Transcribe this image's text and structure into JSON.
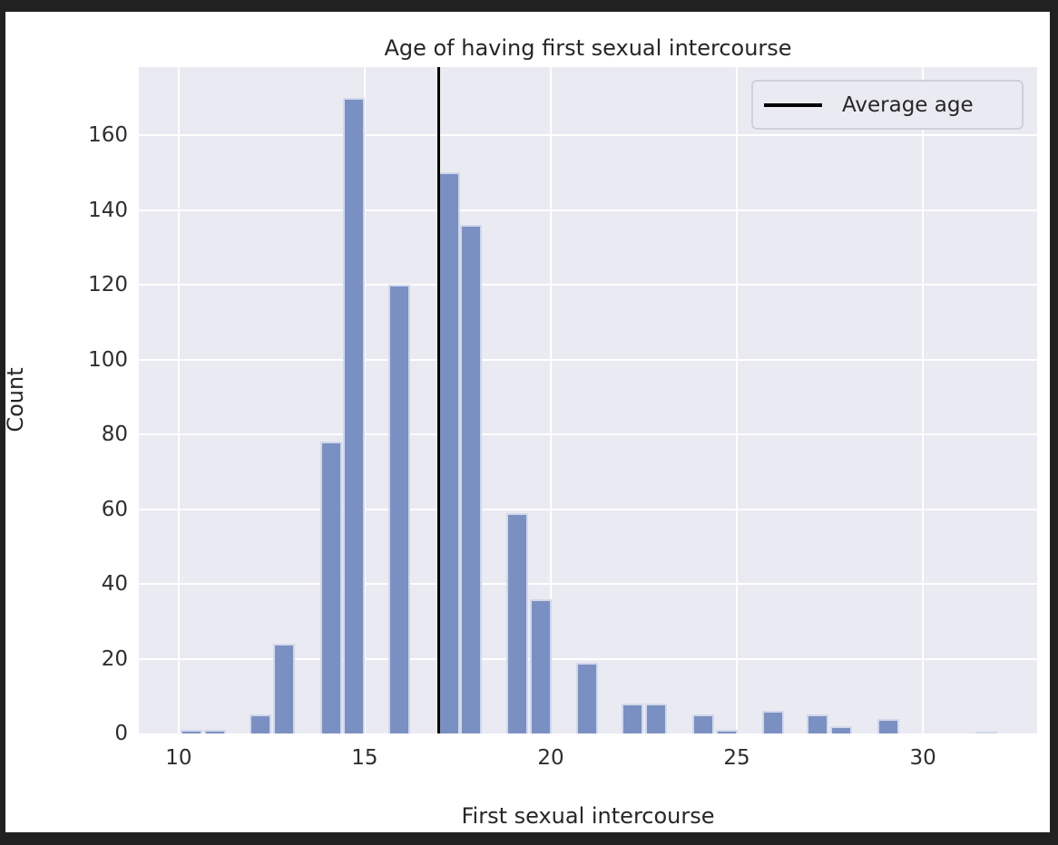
{
  "window": {
    "outer_background": "#212121",
    "figure_background": "#ffffff"
  },
  "chart_data": {
    "type": "bar",
    "subtype": "histogram",
    "title": "Age of having first sexual intercourse",
    "xlabel": "First sexual intercourse",
    "ylabel": "Count",
    "xlim": [
      8.93,
      33.07
    ],
    "ylim": [
      0,
      178.2
    ],
    "x_ticks": [
      10,
      15,
      20,
      25,
      30
    ],
    "y_ticks": [
      0,
      20,
      40,
      60,
      80,
      100,
      120,
      140,
      160
    ],
    "grid": true,
    "legend_position": "upper right",
    "plot_background": "#eaeaf2",
    "grid_color": "#ffffff",
    "bar_color": "#7b90c2",
    "bar_edge_color": "rgba(255,255,255,0.65)",
    "bar_width_units": 0.585,
    "bars": [
      {
        "x": 10.34,
        "count": 1
      },
      {
        "x": 10.97,
        "count": 1
      },
      {
        "x": 12.2,
        "count": 5
      },
      {
        "x": 12.82,
        "count": 24
      },
      {
        "x": 14.09,
        "count": 78
      },
      {
        "x": 14.72,
        "count": 170
      },
      {
        "x": 15.93,
        "count": 120
      },
      {
        "x": 17.26,
        "count": 150
      },
      {
        "x": 17.85,
        "count": 136
      },
      {
        "x": 19.1,
        "count": 59
      },
      {
        "x": 19.74,
        "count": 36
      },
      {
        "x": 20.98,
        "count": 19
      },
      {
        "x": 22.2,
        "count": 8
      },
      {
        "x": 22.84,
        "count": 8
      },
      {
        "x": 24.09,
        "count": 5
      },
      {
        "x": 24.72,
        "count": 1
      },
      {
        "x": 25.97,
        "count": 6
      },
      {
        "x": 27.18,
        "count": 5
      },
      {
        "x": 27.8,
        "count": 2
      },
      {
        "x": 29.07,
        "count": 4
      },
      {
        "x": 31.7,
        "count": 0.5
      }
    ],
    "average_line": {
      "x": 17.0,
      "color": "#000000",
      "label": "Average age"
    },
    "legend": {
      "label": "Average age",
      "line_color": "#000000"
    }
  }
}
